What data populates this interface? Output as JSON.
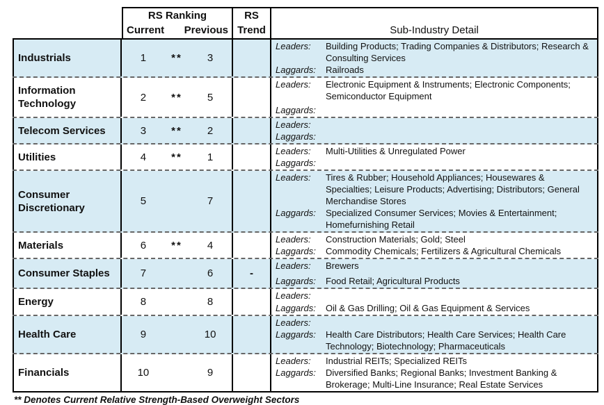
{
  "header": {
    "rs_ranking": "RS Ranking",
    "current": "Current",
    "previous": "Previous",
    "rs_trend_line1": "RS",
    "rs_trend_line2": "Trend",
    "sub_industry": "Sub-Industry Detail"
  },
  "labels": {
    "leaders": "Leaders:",
    "laggards": "Laggards:"
  },
  "colors": {
    "row_highlight": "#d7ebf4",
    "border": "#000000"
  },
  "rows": [
    {
      "sector": "Industrials",
      "current": "1",
      "stars": "**",
      "previous": "3",
      "trend": "",
      "leaders": "Building Products; Trading Companies & Distributors; Research & Consulting Services",
      "laggards": "Railroads"
    },
    {
      "sector": "Information Technology",
      "current": "2",
      "stars": "**",
      "previous": "5",
      "trend": "",
      "leaders": "Electronic Equipment & Instruments; Electronic Components; Semiconductor Equipment",
      "laggards": ""
    },
    {
      "sector": "Telecom Services",
      "current": "3",
      "stars": "**",
      "previous": "2",
      "trend": "",
      "leaders": "",
      "laggards": ""
    },
    {
      "sector": "Utilities",
      "current": "4",
      "stars": "**",
      "previous": "1",
      "trend": "",
      "leaders": "Multi-Utilities & Unregulated Power",
      "laggards": ""
    },
    {
      "sector": "Consumer Discretionary",
      "current": "5",
      "stars": "",
      "previous": "7",
      "trend": "",
      "leaders": "Tires & Rubber; Household Appliances; Housewares & Specialties; Leisure Products; Advertising; Distributors; General Merchandise Stores",
      "laggards": "Specialized Consumer Services; Movies & Entertainment; Homefurnishing Retail"
    },
    {
      "sector": "Materials",
      "current": "6",
      "stars": "**",
      "previous": "4",
      "trend": "",
      "leaders": "Construction Materials; Gold; Steel",
      "laggards": "Commodity Chemicals; Fertilizers & Agricultural Chemicals"
    },
    {
      "sector": "Consumer Staples",
      "current": "7",
      "stars": "",
      "previous": "6",
      "trend": "-",
      "leaders": "Brewers",
      "laggards": "Food Retail; Agricultural Products"
    },
    {
      "sector": "Energy",
      "current": "8",
      "stars": "",
      "previous": "8",
      "trend": "",
      "leaders": "",
      "laggards": "Oil & Gas Drilling; Oil & Gas Equipment & Services"
    },
    {
      "sector": "Health Care",
      "current": "9",
      "stars": "",
      "previous": "10",
      "trend": "",
      "leaders": "",
      "laggards": "Health Care Distributors; Health Care Services; Health Care Technology; Biotechnology; Pharmaceuticals"
    },
    {
      "sector": "Financials",
      "current": "10",
      "stars": "",
      "previous": "9",
      "trend": "",
      "leaders": "Industrial REITs; Specialized REITs",
      "laggards": "Diversified Banks; Regional Banks; Investment Banking & Brokerage; Multi-Line Insurance; Real Estate Services"
    }
  ],
  "footnote": "** Denotes Current Relative Strength-Based Overweight Sectors"
}
